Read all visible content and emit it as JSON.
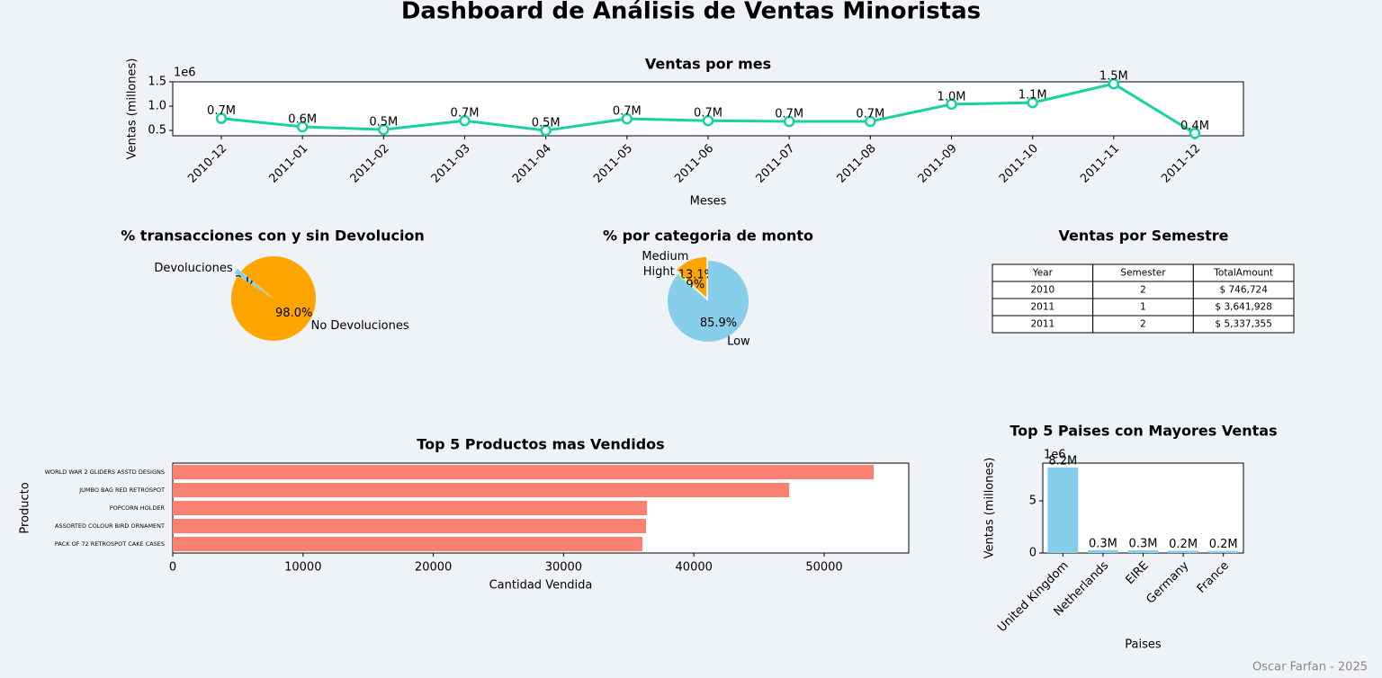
{
  "title": "Dashboard de Análisis de Ventas Minoristas",
  "chart_data": [
    {
      "type": "line",
      "title": "Ventas por mes",
      "xlabel": "Meses",
      "ylabel": "Ventas (millones)",
      "y_offset_label": "1e6",
      "color": "#18d3a0",
      "categories": [
        "2010-12",
        "2011-01",
        "2011-02",
        "2011-03",
        "2011-04",
        "2011-05",
        "2011-06",
        "2011-07",
        "2011-08",
        "2011-09",
        "2011-10",
        "2011-11",
        "2011-12"
      ],
      "values": [
        0.748,
        0.574,
        0.518,
        0.7,
        0.5,
        0.74,
        0.7,
        0.685,
        0.685,
        1.04,
        1.07,
        1.46,
        0.44
      ],
      "value_labels": [
        "0.7M",
        "0.6M",
        "0.5M",
        "0.7M",
        "0.5M",
        "0.7M",
        "0.7M",
        "0.7M",
        "0.7M",
        "1.0M",
        "1.1M",
        "1.5M",
        "0.4M"
      ],
      "ylim": [
        0.39,
        1.5
      ],
      "yticks": [
        0.5,
        {
          "value": 1.0,
          "label": "1.0"
        },
        1.5
      ]
    },
    {
      "type": "pie",
      "title": "% transacciones con y sin Devolucion",
      "categories": [
        "Devoluciones",
        "No Devoluciones"
      ],
      "values": [
        2.0,
        98.0
      ],
      "value_labels": [
        "2.0%",
        "98.0%"
      ],
      "colors": [
        "#87ceeb",
        "#ffa500"
      ],
      "explode": [
        0.1,
        0
      ],
      "startangle": 140
    },
    {
      "type": "pie",
      "title": "% por categoria de monto",
      "categories": [
        "Medium",
        "Hight",
        "Low"
      ],
      "values": [
        13.1,
        0.9,
        85.9
      ],
      "value_labels": [
        "13.1%",
        "0.9%",
        "85.9%"
      ],
      "colors": [
        "#ffa500",
        "#90ee90",
        "#87ceeb"
      ],
      "explode": [
        0.1,
        0,
        0
      ],
      "startangle": 90
    },
    {
      "type": "bar",
      "orientation": "horizontal",
      "title": "Top 5 Productos mas Vendidos",
      "xlabel": "Cantidad Vendida",
      "ylabel": "Producto",
      "color": "#fa8072",
      "categories": [
        "WORLD WAR 2 GLIDERS ASSTD DESIGNS",
        "JUMBO BAG RED RETROSPOT",
        "POPCORN HOLDER",
        "ASSORTED COLOUR BIRD ORNAMENT",
        "PACK OF 72 RETROSPOT CAKE CASES"
      ],
      "values": [
        53800,
        47310,
        36400,
        36330,
        36050
      ],
      "xlim": [
        0,
        56490
      ],
      "xticks": [
        0,
        10000,
        20000,
        30000,
        40000,
        50000
      ]
    },
    {
      "type": "bar",
      "orientation": "vertical",
      "title": "Top 5 Paises con Mayores Ventas",
      "xlabel": "Paises",
      "ylabel": "Ventas (millones)",
      "y_offset_label": "1e6",
      "color": "#87ceeb",
      "categories": [
        "United Kingdom",
        "Netherlands",
        "EIRE",
        "Germany",
        "France"
      ],
      "values": [
        8.2,
        0.28,
        0.26,
        0.22,
        0.2
      ],
      "value_labels": [
        "8.2M",
        "0.3M",
        "0.3M",
        "0.2M",
        "0.2M"
      ],
      "ylim": [
        0,
        8.62
      ],
      "yticks": [
        0,
        5
      ]
    }
  ],
  "table": {
    "title": "Ventas por Semestre",
    "columns": [
      "Year",
      "Semester",
      "TotalAmount"
    ],
    "rows": [
      [
        "2010",
        "2",
        "$ 746,724"
      ],
      [
        "2011",
        "1",
        "$ 3,641,928"
      ],
      [
        "2011",
        "2",
        "$ 5,337,355"
      ]
    ]
  },
  "footer": "Oscar Farfan - 2025"
}
